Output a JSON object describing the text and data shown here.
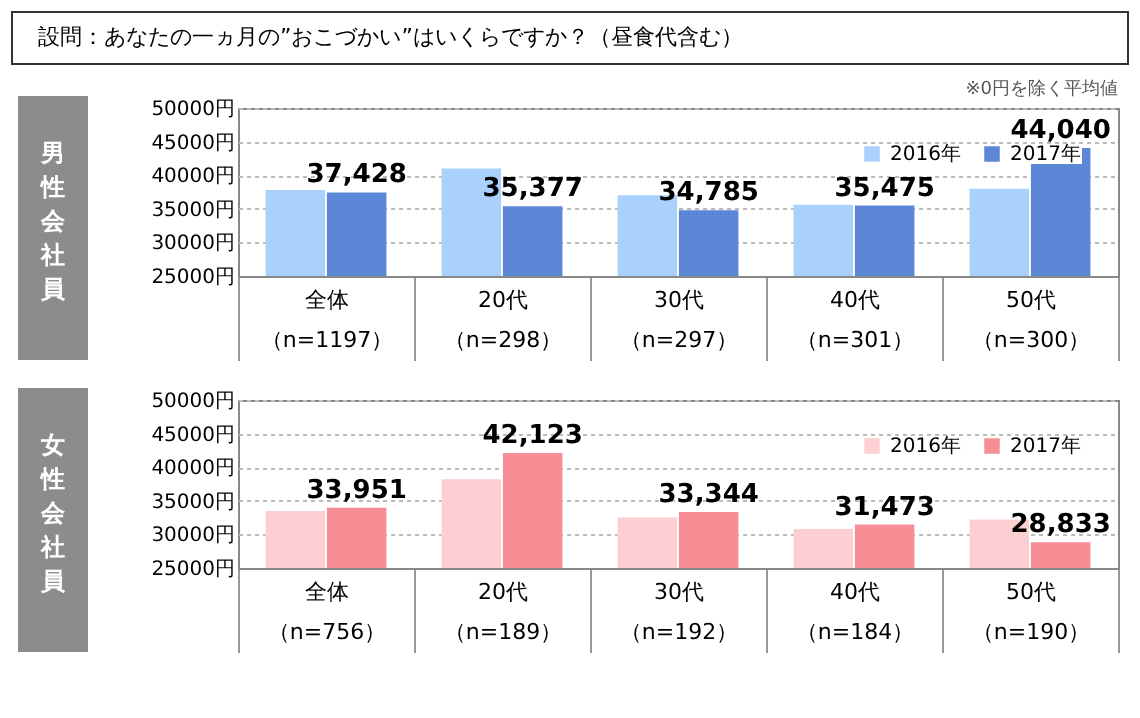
{
  "chart_data": [
    {
      "type": "bar",
      "title": "設問：あなたの一ヵ月の”おこづかい”はいくらですか？（昼食代含む）",
      "annotations": [
        "※0円を除く平均値"
      ],
      "ylabel": "男性会社員",
      "categories": [
        "全体（n=1197）",
        "20代（n=298）",
        "30代（n=297）",
        "40代（n=301）",
        "50代（n=300）"
      ],
      "series": [
        {
          "name": "2016年",
          "color": "#a9d1fb",
          "values": [
            37800,
            41000,
            37000,
            35600,
            38000
          ]
        },
        {
          "name": "2017年",
          "color": "#5b87d6",
          "values": [
            37428,
            35377,
            34785,
            35475,
            44040
          ],
          "value_labels": [
            "37,428",
            "35,377",
            "34,785",
            "35,475",
            "44,040"
          ]
        }
      ],
      "ylim": [
        25000,
        50000
      ],
      "yticks": [
        {
          "value": 25000,
          "label": "25000円"
        },
        {
          "value": 30000,
          "label": "30000円"
        },
        {
          "value": 35000,
          "label": "35000円"
        },
        {
          "value": 40000,
          "label": "40000円"
        },
        {
          "value": 45000,
          "label": "45000円"
        },
        {
          "value": 50000,
          "label": "50000円"
        }
      ],
      "grid": "y",
      "legend": "top right"
    },
    {
      "type": "bar",
      "ylabel": "女性会社員",
      "categories": [
        "全体（n=756）",
        "20代（n=189）",
        "30代（n=192）",
        "40代（n=184）",
        "50代（n=190）"
      ],
      "series": [
        {
          "name": "2016年",
          "color": "#fccfd2",
          "values": [
            33500,
            38200,
            32500,
            30800,
            32200
          ]
        },
        {
          "name": "2017年",
          "color": "#f78d95",
          "values": [
            33951,
            42123,
            33344,
            31473,
            28833
          ],
          "value_labels": [
            "33,951",
            "42,123",
            "33,344",
            "31,473",
            "28,833"
          ]
        }
      ],
      "ylim": [
        25000,
        50000
      ],
      "yticks": [
        {
          "value": 25000,
          "label": "25000円"
        },
        {
          "value": 30000,
          "label": "30000円"
        },
        {
          "value": 35000,
          "label": "35000円"
        },
        {
          "value": 40000,
          "label": "40000円"
        },
        {
          "value": 45000,
          "label": "45000円"
        },
        {
          "value": 50000,
          "label": "50000円"
        }
      ],
      "grid": "y",
      "legend": "top right"
    }
  ]
}
